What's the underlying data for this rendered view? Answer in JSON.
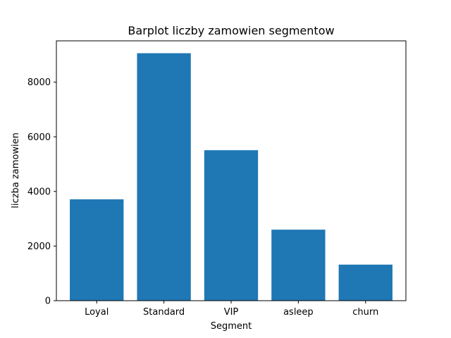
{
  "chart_data": {
    "type": "bar",
    "title": "Barplot liczby zamowien segmentow",
    "xlabel": "Segment",
    "ylabel": "liczba zamowien",
    "categories": [
      "Loyal",
      "Standard",
      "VIP",
      "asleep",
      "churn"
    ],
    "values": [
      3710,
      9060,
      5510,
      2600,
      1320
    ],
    "ylim": [
      0,
      9513
    ],
    "yticks": [
      0,
      2000,
      4000,
      6000,
      8000
    ],
    "ytick_labels": [
      "0",
      "2000",
      "4000",
      "6000",
      "8000"
    ],
    "grid": false,
    "bar_color": "#1f77b4"
  }
}
